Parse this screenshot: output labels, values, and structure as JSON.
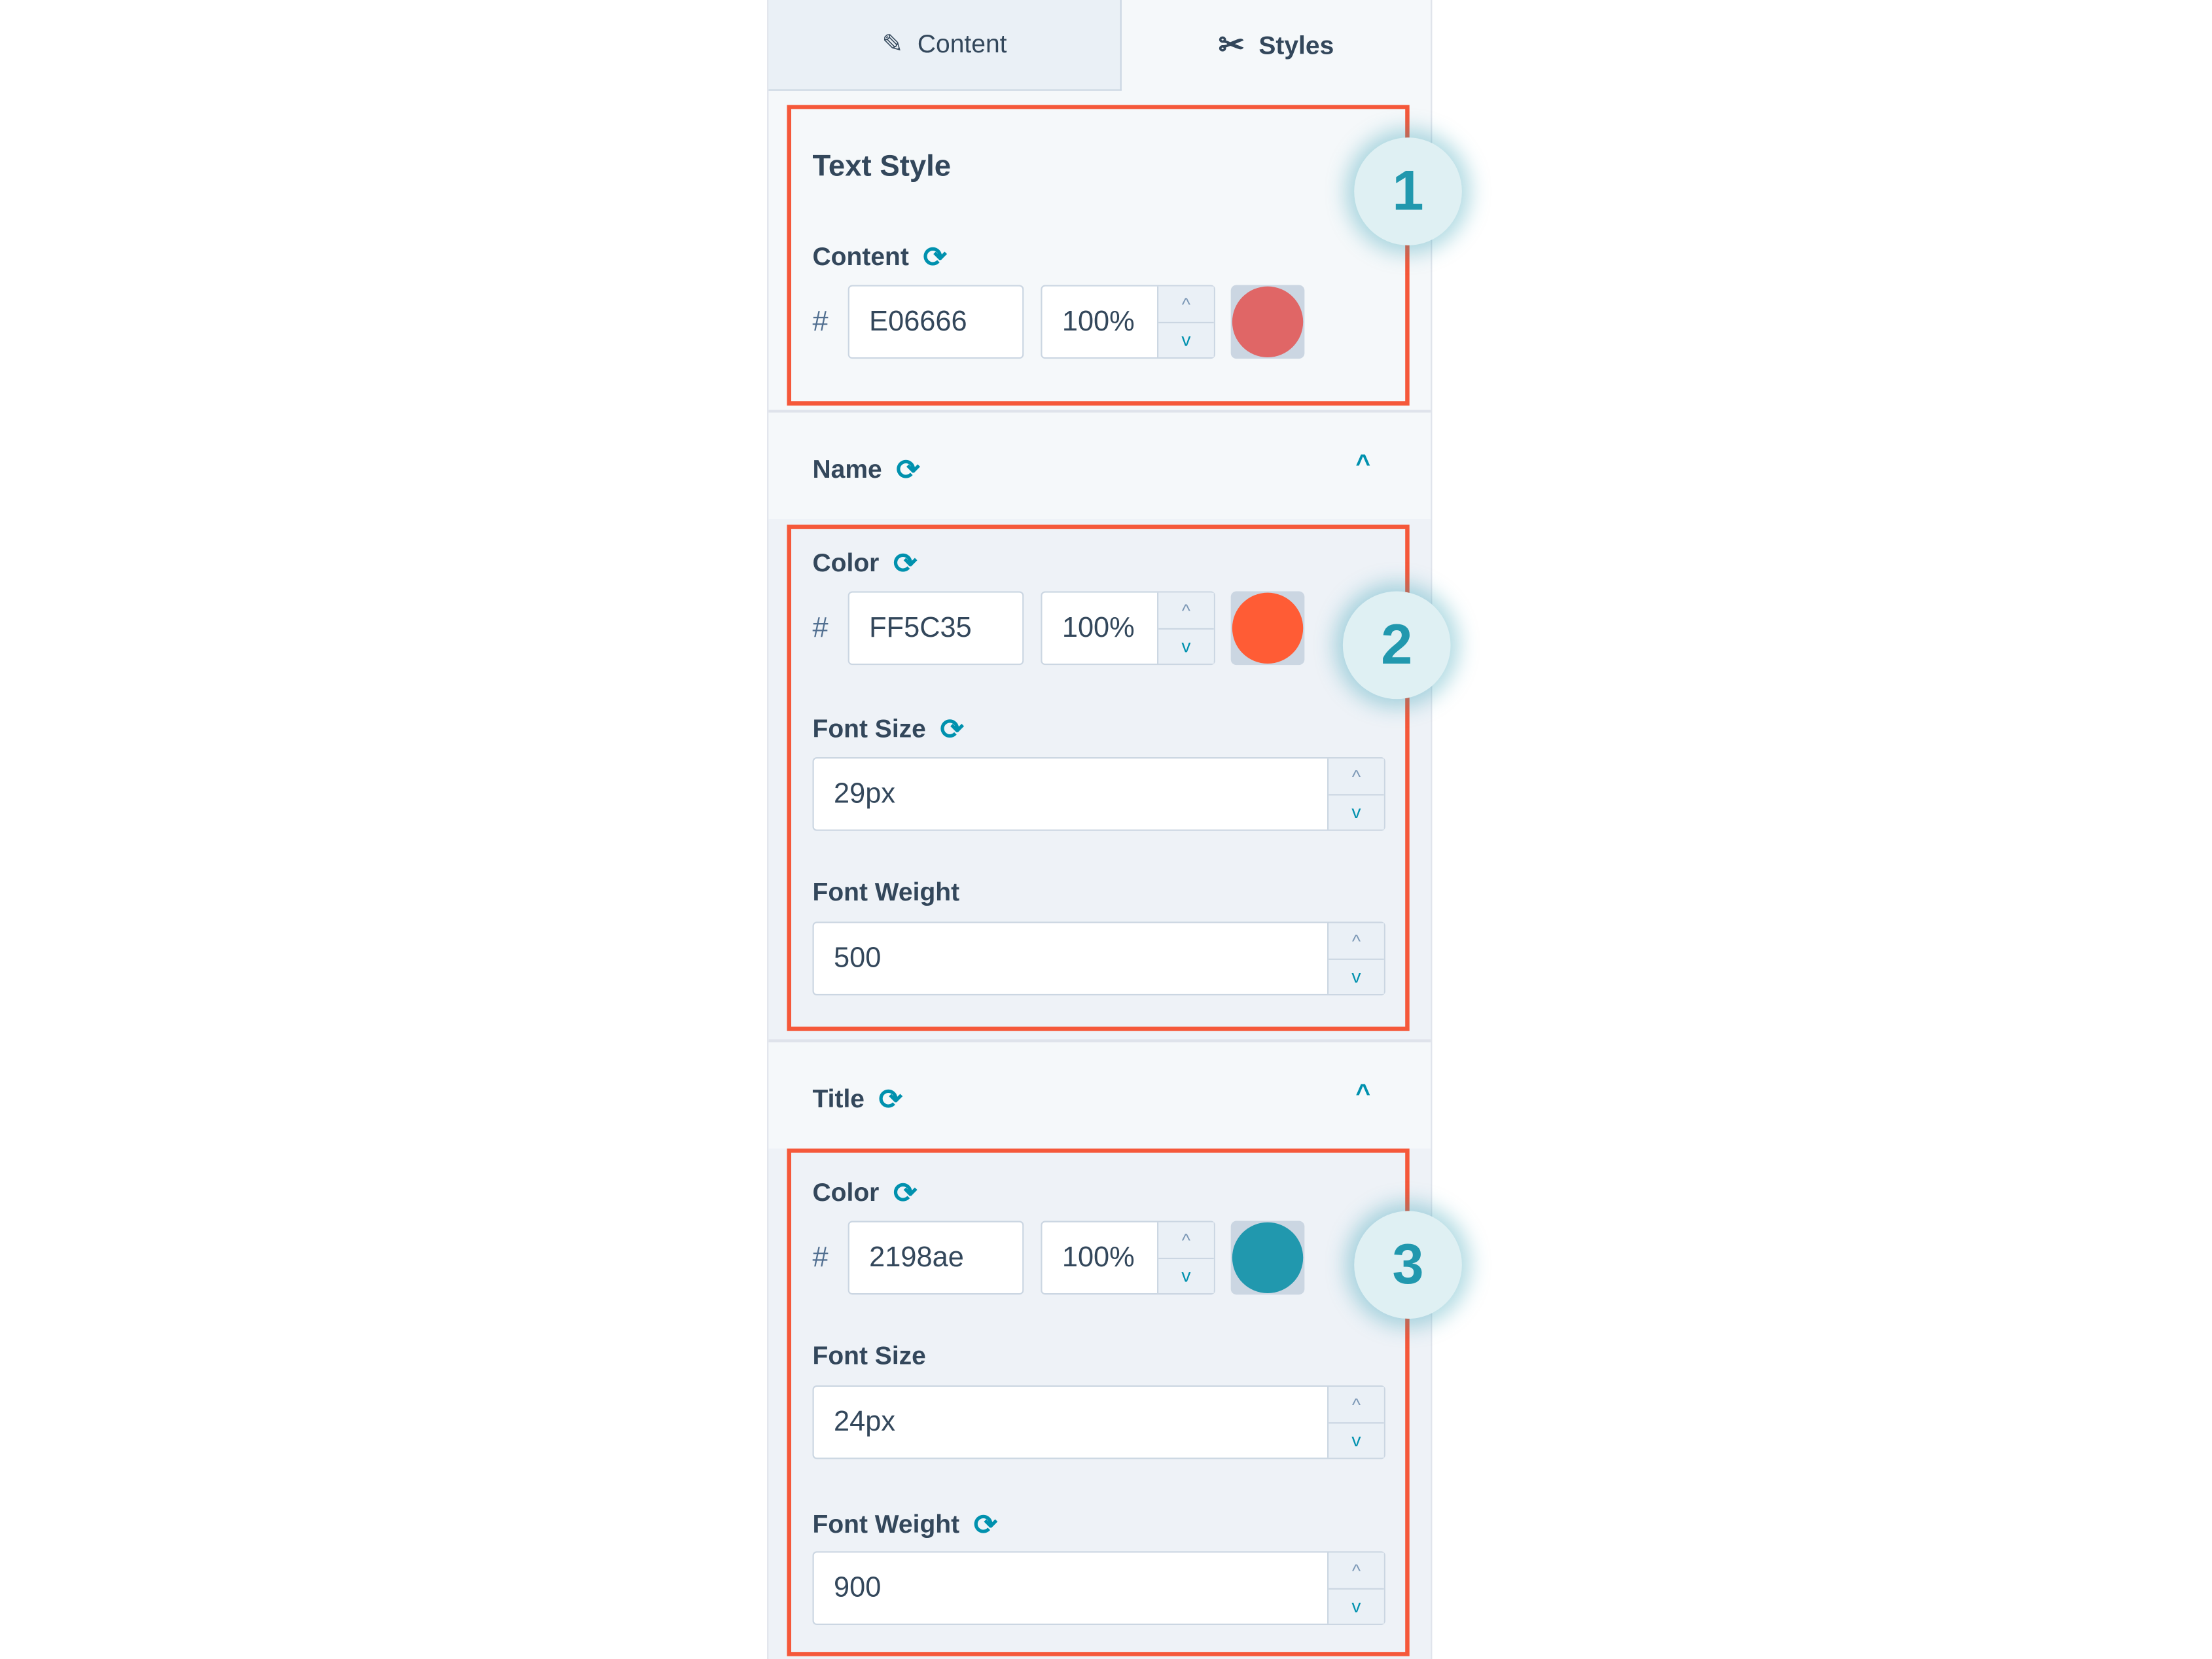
{
  "tabs": [
    {
      "label": "Content",
      "icon": "pencil-icon",
      "active": false
    },
    {
      "label": "Styles",
      "icon": "brush-icon",
      "active": true
    }
  ],
  "text_style": {
    "title": "Text Style",
    "content_label": "Content",
    "hash": "#",
    "hex": "E06666",
    "opacity": "100%",
    "color": "#E06666",
    "badge": "1"
  },
  "name": {
    "title": "Name",
    "color_label": "Color",
    "hash": "#",
    "hex": "FF5C35",
    "opacity": "100%",
    "color": "#FF5C35",
    "font_size_label": "Font Size",
    "font_size": "29px",
    "font_weight_label": "Font Weight",
    "font_weight": "500",
    "badge": "2"
  },
  "title_section": {
    "title": "Title",
    "color_label": "Color",
    "hash": "#",
    "hex": "2198ae",
    "opacity": "100%",
    "color": "#2198ae",
    "font_size_label": "Font Size",
    "font_size": "24px",
    "font_weight_label": "Font Weight",
    "font_weight": "900",
    "badge": "3"
  },
  "highlight_color": "#F5583A"
}
